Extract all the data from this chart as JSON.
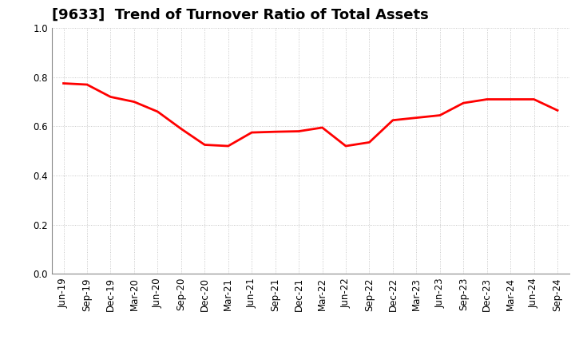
{
  "title": "[9633]  Trend of Turnover Ratio of Total Assets",
  "x_labels": [
    "Jun-19",
    "Sep-19",
    "Dec-19",
    "Mar-20",
    "Jun-20",
    "Sep-20",
    "Dec-20",
    "Mar-21",
    "Jun-21",
    "Sep-21",
    "Dec-21",
    "Mar-22",
    "Jun-22",
    "Sep-22",
    "Dec-22",
    "Mar-23",
    "Jun-23",
    "Sep-23",
    "Dec-23",
    "Mar-24",
    "Jun-24",
    "Sep-24"
  ],
  "y_values": [
    0.775,
    0.77,
    0.72,
    0.7,
    0.66,
    0.59,
    0.525,
    0.52,
    0.575,
    0.578,
    0.58,
    0.595,
    0.52,
    0.535,
    0.625,
    0.635,
    0.645,
    0.695,
    0.71,
    0.71,
    0.71,
    0.665
  ],
  "line_color": "#FF0000",
  "line_width": 2.0,
  "ylim": [
    0.0,
    1.0
  ],
  "yticks": [
    0.0,
    0.2,
    0.4,
    0.6,
    0.8,
    1.0
  ],
  "bg_color": "#ffffff",
  "grid_color": "#aaaaaa",
  "title_fontsize": 13,
  "tick_fontsize": 8.5
}
